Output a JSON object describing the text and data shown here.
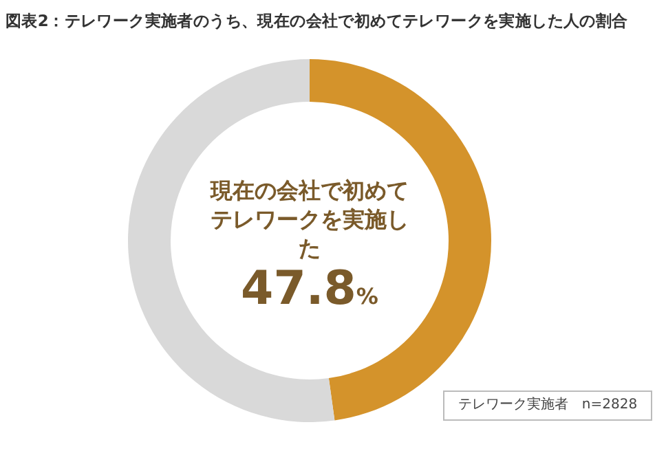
{
  "chart_data": {
    "type": "donut",
    "title": "図表2：テレワーク実施者のうち、現在の会社で初めてテレワークを実施した人の割合",
    "categories": [
      "現在の会社で初めてテレワークを実施した",
      null
    ],
    "values": [
      47.8,
      52.2
    ],
    "colors": [
      "#d4932b",
      "#d9d9d9"
    ],
    "value_labels": [
      "47.8%",
      null
    ],
    "annotations": [
      "テレワーク実施者　n=2828"
    ]
  }
}
